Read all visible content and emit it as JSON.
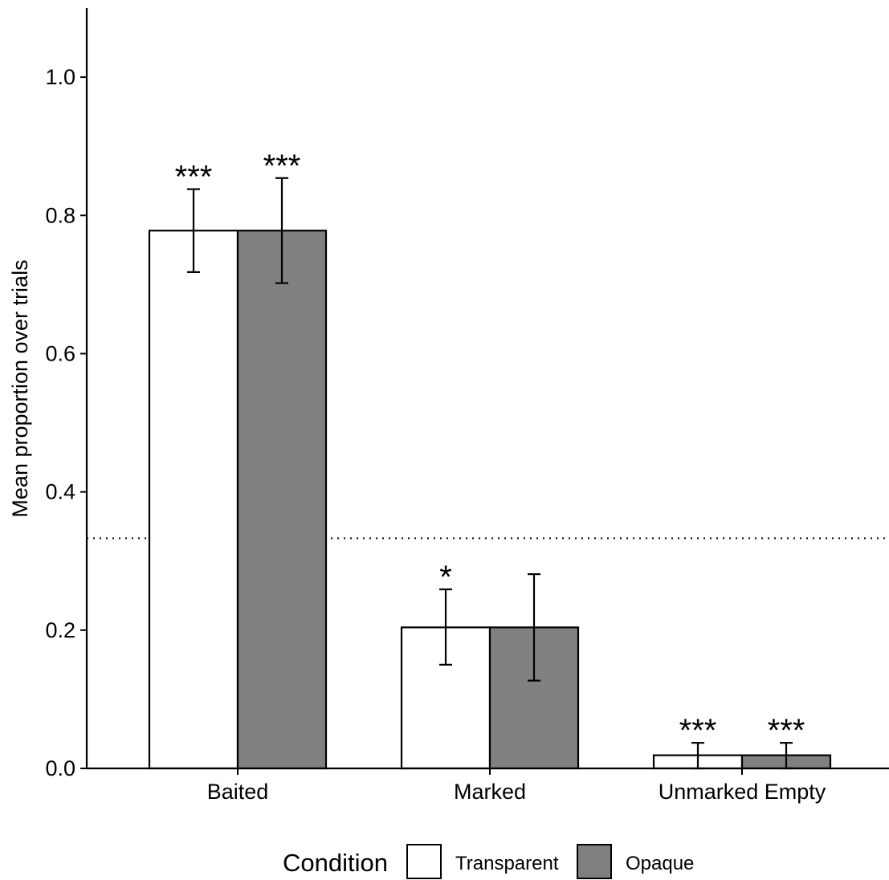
{
  "chart_data": {
    "type": "bar",
    "title": "",
    "xlabel": "",
    "ylabel": "Mean proportion over trials",
    "ylim": [
      0,
      1.1
    ],
    "yticks": [
      0.0,
      0.2,
      0.4,
      0.6,
      0.8,
      1.0
    ],
    "ytick_labels": [
      "0.0",
      "0.2",
      "0.4",
      "0.6",
      "0.8",
      "1.0"
    ],
    "categories": [
      "Baited",
      "Marked",
      "Unmarked Empty"
    ],
    "reference_line": {
      "y": 0.333,
      "style": "dotted"
    },
    "grid": false,
    "legend": {
      "title": "Condition",
      "position": "bottom"
    },
    "series": [
      {
        "name": "Transparent",
        "color": "#ffffff",
        "values": [
          0.778,
          0.204,
          0.019
        ],
        "error_low": [
          0.718,
          0.15,
          0.0
        ],
        "error_high": [
          0.838,
          0.259,
          0.037
        ],
        "significance": [
          "***",
          "*",
          "***"
        ]
      },
      {
        "name": "Opaque",
        "color": "#808080",
        "values": [
          0.778,
          0.204,
          0.019
        ],
        "error_low": [
          0.702,
          0.127,
          0.0
        ],
        "error_high": [
          0.854,
          0.281,
          0.037
        ],
        "significance": [
          "***",
          "",
          "***"
        ]
      }
    ]
  }
}
